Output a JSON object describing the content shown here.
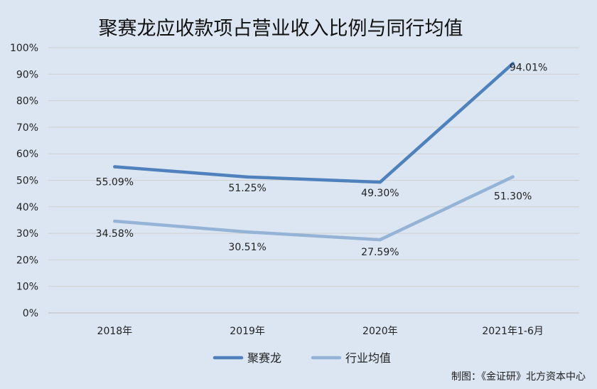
{
  "chart_data": {
    "type": "line",
    "title": "聚赛龙应收款项占营业收入比例与同行均值",
    "categories": [
      "2018年",
      "2019年",
      "2020年",
      "2021年1-6月"
    ],
    "y_ticks": [
      "0%",
      "10%",
      "20%",
      "30%",
      "40%",
      "50%",
      "60%",
      "70%",
      "80%",
      "90%",
      "100%"
    ],
    "ylim": [
      0,
      100
    ],
    "grid": true,
    "legend_position": "bottom",
    "series": [
      {
        "name": "聚赛龙",
        "color": "#4f81bd",
        "values": [
          55.09,
          51.25,
          49.3,
          94.01
        ],
        "labels": [
          "55.09%",
          "51.25%",
          "49.30%",
          "94.01%"
        ]
      },
      {
        "name": "行业均值",
        "color": "#95b3d7",
        "values": [
          34.58,
          30.51,
          27.59,
          51.3
        ],
        "labels": [
          "34.58%",
          "30.51%",
          "27.59%",
          "51.30%"
        ]
      }
    ]
  },
  "footer": {
    "source": "制图：《金证研》北方资本中心"
  }
}
